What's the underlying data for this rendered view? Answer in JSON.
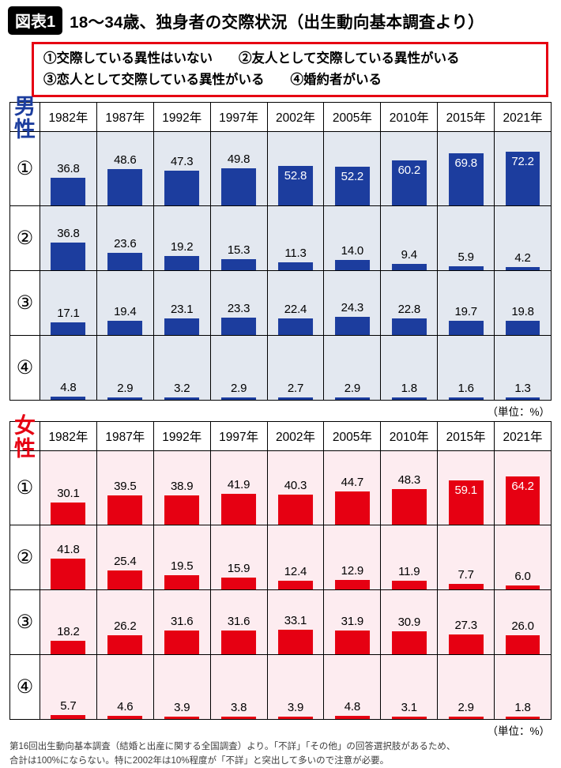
{
  "header": {
    "badge": "図表1",
    "title": "18〜34歳、独身者の交際状況（出生動向基本調査より）"
  },
  "legend": {
    "line1": "①交際している異性はいない　　②友人として交際している異性がいる",
    "line2": "③恋人として交際している異性がいる　　④婚約者がいる"
  },
  "unit_label": "（単位：%）",
  "footnote_line1": "第16回出生動向基本調査（結婚と出産に関する全国調査）より。「不詳」「その他」の回答選択肢があるため、",
  "footnote_line2": "合計は100%にならない。特に2002年は10%程度が「不詳」と突出して多いので注意が必要。",
  "chart_data": [
    {
      "type": "bar",
      "group_label": "男性",
      "accent_color": "#1c3d9e",
      "cell_bg": "#e3e8f0",
      "value_unit": "%",
      "ylim": [
        0,
        100
      ],
      "categories": [
        "1982年",
        "1987年",
        "1992年",
        "1997年",
        "2002年",
        "2005年",
        "2010年",
        "2015年",
        "2021年"
      ],
      "series": [
        {
          "name": "①",
          "values": [
            "36.8",
            "48.6",
            "47.3",
            "49.8",
            "52.8",
            "52.2",
            "60.2",
            "69.8",
            "72.2"
          ]
        },
        {
          "name": "②",
          "values": [
            "36.8",
            "23.6",
            "19.2",
            "15.3",
            "11.3",
            "14.0",
            "9.4",
            "5.9",
            "4.2"
          ]
        },
        {
          "name": "③",
          "values": [
            "17.1",
            "19.4",
            "23.1",
            "23.3",
            "22.4",
            "24.3",
            "22.8",
            "19.7",
            "19.8"
          ]
        },
        {
          "name": "④",
          "values": [
            "4.8",
            "2.9",
            "3.2",
            "2.9",
            "2.7",
            "2.9",
            "1.8",
            "1.6",
            "1.3"
          ]
        }
      ]
    },
    {
      "type": "bar",
      "group_label": "女性",
      "accent_color": "#e60012",
      "cell_bg": "#fdecf0",
      "value_unit": "%",
      "ylim": [
        0,
        100
      ],
      "categories": [
        "1982年",
        "1987年",
        "1992年",
        "1997年",
        "2002年",
        "2005年",
        "2010年",
        "2015年",
        "2021年"
      ],
      "series": [
        {
          "name": "①",
          "values": [
            "30.1",
            "39.5",
            "38.9",
            "41.9",
            "40.3",
            "44.7",
            "48.3",
            "59.1",
            "64.2"
          ]
        },
        {
          "name": "②",
          "values": [
            "41.8",
            "25.4",
            "19.5",
            "15.9",
            "12.4",
            "12.9",
            "11.9",
            "7.7",
            "6.0"
          ]
        },
        {
          "name": "③",
          "values": [
            "18.2",
            "26.2",
            "31.6",
            "31.6",
            "33.1",
            "31.9",
            "30.9",
            "27.3",
            "26.0"
          ]
        },
        {
          "name": "④",
          "values": [
            "5.7",
            "4.6",
            "3.9",
            "3.8",
            "3.9",
            "4.8",
            "3.1",
            "2.9",
            "1.8"
          ]
        }
      ]
    }
  ]
}
